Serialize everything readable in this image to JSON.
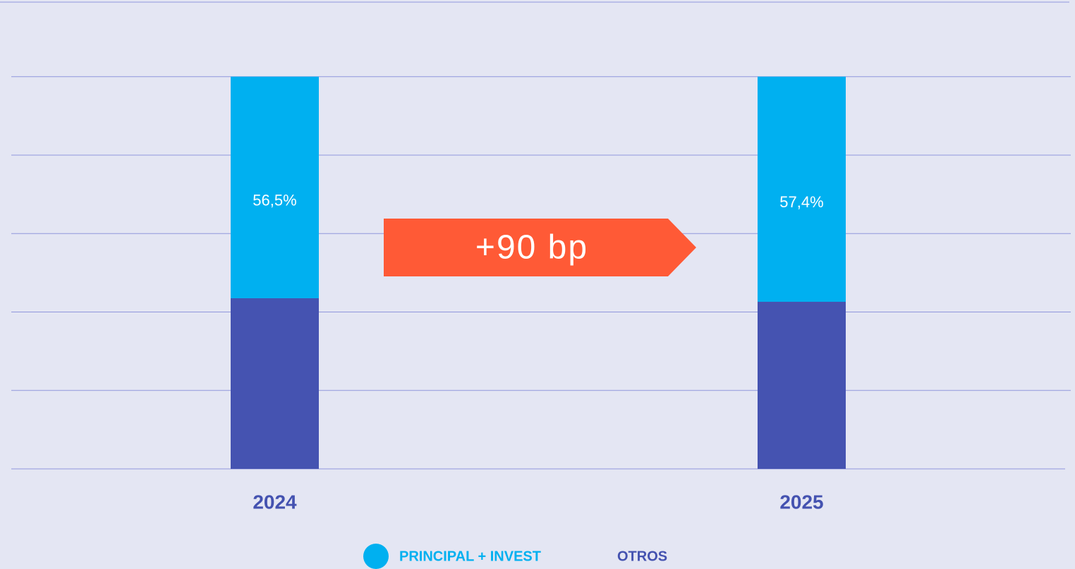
{
  "chart_data": {
    "type": "stacked_bar",
    "categories": [
      "2024",
      "2025"
    ],
    "series": [
      {
        "name": "PRINCIPAL + INVEST",
        "color": "#00b0f0",
        "values": [
          56.5,
          57.4
        ],
        "value_labels": [
          "56,5%",
          "57,4%"
        ]
      },
      {
        "name": "OTROS",
        "color": "#4553b1",
        "values": [
          43.5,
          42.6
        ]
      }
    ],
    "ylim": [
      0,
      119
    ],
    "yticks": [
      0,
      20,
      40,
      60,
      80,
      100
    ],
    "grid": true,
    "annotation": "+90 bp"
  }
}
